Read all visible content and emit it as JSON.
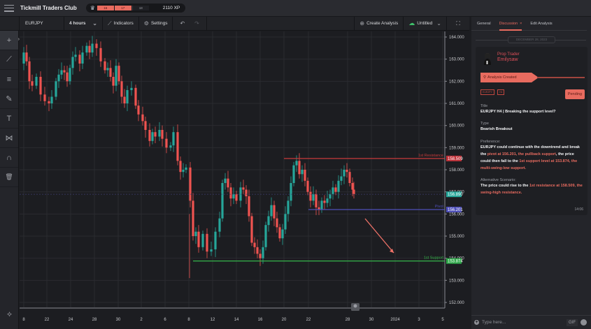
{
  "app": {
    "title": "Tickmill Traders Club",
    "xp": {
      "segments": [
        "16",
        "17",
        "18"
      ],
      "label": "2110 XP"
    }
  },
  "chartbar": {
    "symbol": "EURJPY",
    "interval": "4 hours",
    "indicators_label": "Indicators",
    "settings_label": "Settings",
    "create_analysis_label": "Create Analysis",
    "layout_name": "Untitled"
  },
  "tools": [
    {
      "name": "crosshair",
      "glyph": "+"
    },
    {
      "name": "trend-line",
      "glyph": "⟋"
    },
    {
      "name": "fib-lines",
      "glyph": "≡"
    },
    {
      "name": "brush",
      "glyph": "✎"
    },
    {
      "name": "text",
      "glyph": "T"
    },
    {
      "name": "pattern",
      "glyph": "⋈"
    },
    {
      "name": "magnet",
      "glyph": "∩"
    },
    {
      "name": "trash",
      "glyph": "🗑"
    }
  ],
  "chart_data": {
    "type": "candlestick",
    "symbol": "EURJPY",
    "interval": "4 hours",
    "y_axis": {
      "ticks": [
        "164.000",
        "163.000",
        "162.000",
        "161.000",
        "160.000",
        "159.000",
        "158.000",
        "157.000",
        "156.000",
        "155.000",
        "154.000",
        "153.000",
        "152.000"
      ],
      "min": 151.6,
      "max": 164.1
    },
    "x_axis": {
      "ticks": [
        "8",
        "22",
        "24",
        "28",
        "30",
        "2",
        "6",
        "8",
        "12",
        "14",
        "16",
        "20",
        "22",
        "28",
        "30",
        "2024",
        "3",
        "5"
      ]
    },
    "levels": [
      {
        "label": "1st Resistance",
        "value": "158.509",
        "color": "#c63a3a"
      },
      {
        "label": "Pivot",
        "value": "156.201",
        "color": "#4e4fb8"
      },
      {
        "label": "1st Support",
        "value": "153.874",
        "color": "#35b54a"
      }
    ],
    "last_price": {
      "value": "156.890",
      "color": "#26a69a"
    },
    "annotations": [
      "downward arrow projecting toward 1st Support"
    ]
  },
  "panel": {
    "tabs": [
      {
        "label": "General",
        "active": false
      },
      {
        "label": "Discussion",
        "active": true,
        "closable": "×"
      },
      {
        "label": "Edit Analysis",
        "active": false
      }
    ],
    "date": "DECEMBER 28, 2023",
    "author": {
      "role": "Prop Trader",
      "name": "Emilysaw"
    },
    "status_banner": "Analysis Created",
    "tags": [
      "EURJPY",
      "H4"
    ],
    "status": "Pending",
    "title_label": "Title",
    "title_value": "EURJPY H4 | Breaking the support level?",
    "type_label": "Type",
    "type_value": "Bearish Breakout",
    "preference_label": "Preference:",
    "preference_parts": [
      "EURJPY could continue with the downtrend and break the ",
      "pivot at 156.201, the pullback support",
      ", the price could then fall to the ",
      "1st support level at 153.874, the multi-swing-low support."
    ],
    "alternative_label": "Alternative Scenario:",
    "alternative_parts": [
      "The price could rise to the ",
      "1st resistance at 158.509, the swing-high resistance."
    ],
    "time": "14:06",
    "composer": {
      "placeholder": "Type here...",
      "gif_label": "GIF"
    }
  }
}
